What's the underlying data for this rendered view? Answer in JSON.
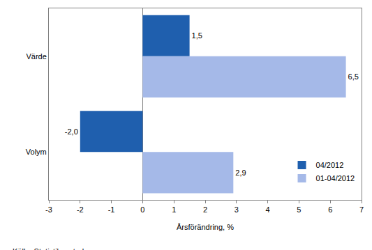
{
  "chart_data": {
    "type": "bar",
    "orientation": "horizontal",
    "categories": [
      "Värde",
      "Volym"
    ],
    "series": [
      {
        "name": "04/2012",
        "color": "#1f5fae",
        "values": [
          1.5,
          -2.0
        ],
        "value_labels": [
          "1,5",
          "-2,0"
        ]
      },
      {
        "name": "01-04/2012",
        "color": "#a5b9e8",
        "values": [
          6.5,
          2.9
        ],
        "value_labels": [
          "6,5",
          "2,9"
        ]
      }
    ],
    "x_label": "Årsförändring, %",
    "xlim": [
      -3,
      7
    ],
    "xticks": [
      -3,
      -2,
      -1,
      0,
      1,
      2,
      3,
      4,
      5,
      6,
      7
    ],
    "grid": false,
    "legend": "lower right",
    "data_labels": true,
    "note": "Källa: Statistikcentralen"
  }
}
